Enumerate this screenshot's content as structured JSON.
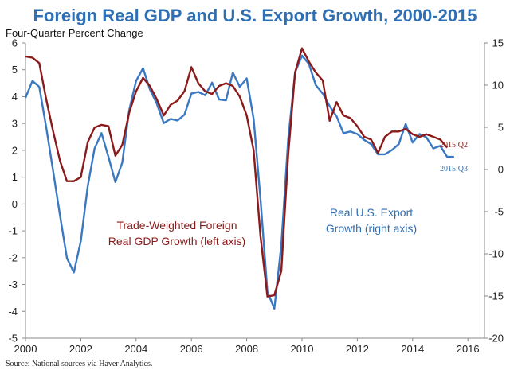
{
  "chart_data": {
    "type": "line",
    "title": "Foreign Real GDP and U.S. Export Growth, 2000-2015",
    "subtitle": "Four-Quarter Percent Change",
    "source": "Source: National sources via Haver Analytics.",
    "x_range": [
      2000,
      2016.6
    ],
    "x_ticks": [
      "2000",
      "2002",
      "2004",
      "2006",
      "2008",
      "2010",
      "2012",
      "2014",
      "2016"
    ],
    "ylim_left": [
      -5,
      6
    ],
    "yticks_left": [
      "6",
      "5",
      "4",
      "3",
      "2",
      "1",
      "0",
      "-1",
      "-2",
      "-3",
      "-4",
      "-5"
    ],
    "ylim_right": [
      -20,
      15
    ],
    "yticks_right": [
      "15",
      "10",
      "5",
      "0",
      "-5",
      "-10",
      "-15",
      "-20"
    ],
    "colors": {
      "foreign_gdp": "#8b1a1a",
      "us_exports": "#3a78c2",
      "title": "#2f6fb3"
    },
    "series": [
      {
        "name": "Trade-Weighted Foreign Real GDP Growth (left axis)",
        "axis": "left",
        "color": "#8b1a1a",
        "x": [
          2000.0,
          2000.25,
          2000.5,
          2000.75,
          2001.0,
          2001.25,
          2001.5,
          2001.75,
          2002.0,
          2002.25,
          2002.5,
          2002.75,
          2003.0,
          2003.25,
          2003.5,
          2003.75,
          2004.0,
          2004.25,
          2004.5,
          2004.75,
          2005.0,
          2005.25,
          2005.5,
          2005.75,
          2006.0,
          2006.25,
          2006.5,
          2006.75,
          2007.0,
          2007.25,
          2007.5,
          2007.75,
          2008.0,
          2008.25,
          2008.5,
          2008.75,
          2009.0,
          2009.25,
          2009.5,
          2009.75,
          2010.0,
          2010.25,
          2010.5,
          2010.75,
          2011.0,
          2011.25,
          2011.5,
          2011.75,
          2012.0,
          2012.25,
          2012.5,
          2012.75,
          2013.0,
          2013.25,
          2013.5,
          2013.75,
          2014.0,
          2014.25,
          2014.5,
          2014.75,
          2015.0,
          2015.25
        ],
        "values": [
          5.5,
          5.45,
          5.25,
          3.9,
          2.7,
          1.6,
          0.85,
          0.85,
          1.0,
          2.3,
          2.85,
          2.95,
          2.9,
          1.8,
          2.2,
          3.4,
          4.2,
          4.7,
          4.4,
          3.9,
          3.3,
          3.7,
          3.85,
          4.2,
          5.1,
          4.5,
          4.2,
          4.1,
          4.4,
          4.5,
          4.4,
          4.0,
          3.3,
          2.0,
          -1.2,
          -3.45,
          -3.4,
          -2.5,
          1.8,
          4.9,
          5.8,
          5.3,
          4.9,
          4.6,
          3.1,
          3.8,
          3.3,
          3.2,
          2.9,
          2.5,
          2.4,
          1.9,
          2.5,
          2.7,
          2.7,
          2.8,
          2.6,
          2.5,
          2.6,
          2.5,
          2.4,
          2.1
        ]
      },
      {
        "name": "Real U.S. Export Growth (right axis)",
        "axis": "right",
        "color": "#3a78c2",
        "x": [
          2000.0,
          2000.25,
          2000.5,
          2000.75,
          2001.0,
          2001.25,
          2001.5,
          2001.75,
          2002.0,
          2002.25,
          2002.5,
          2002.75,
          2003.0,
          2003.25,
          2003.5,
          2003.75,
          2004.0,
          2004.25,
          2004.5,
          2004.75,
          2005.0,
          2005.25,
          2005.5,
          2005.75,
          2006.0,
          2006.25,
          2006.5,
          2006.75,
          2007.0,
          2007.25,
          2007.5,
          2007.75,
          2008.0,
          2008.25,
          2008.5,
          2008.75,
          2009.0,
          2009.25,
          2009.5,
          2009.75,
          2010.0,
          2010.25,
          2010.5,
          2010.75,
          2011.0,
          2011.25,
          2011.5,
          2011.75,
          2012.0,
          2012.25,
          2012.5,
          2012.75,
          2013.0,
          2013.25,
          2013.5,
          2013.75,
          2014.0,
          2014.25,
          2014.5,
          2014.75,
          2015.0,
          2015.25,
          2015.5
        ],
        "values": [
          8.5,
          10.5,
          9.8,
          5.0,
          -0.2,
          -5.5,
          -10.5,
          -12.2,
          -8.5,
          -2.0,
          2.5,
          4.3,
          1.5,
          -1.5,
          0.8,
          7.0,
          10.5,
          12.0,
          9.5,
          7.8,
          5.5,
          6.0,
          5.8,
          6.5,
          9.0,
          9.2,
          8.8,
          10.3,
          8.3,
          8.2,
          11.5,
          9.8,
          10.8,
          6.0,
          -3.5,
          -14.5,
          -16.5,
          -9.0,
          3.5,
          11.5,
          13.5,
          12.5,
          10.0,
          9.0,
          7.5,
          6.3,
          4.3,
          4.5,
          4.2,
          3.5,
          3.0,
          1.8,
          1.8,
          2.3,
          3.0,
          5.4,
          3.2,
          4.2,
          3.8,
          2.5,
          2.8,
          1.5,
          1.5
        ]
      }
    ],
    "annotations": {
      "foreign_line1": "Trade-Weighted Foreign",
      "foreign_line2": "Real GDP Growth (left axis)",
      "export_line1": "Real U.S. Export",
      "export_line2": "Growth (right axis)",
      "foreign_end": "2015:Q2",
      "export_end": "2015:Q3"
    }
  }
}
